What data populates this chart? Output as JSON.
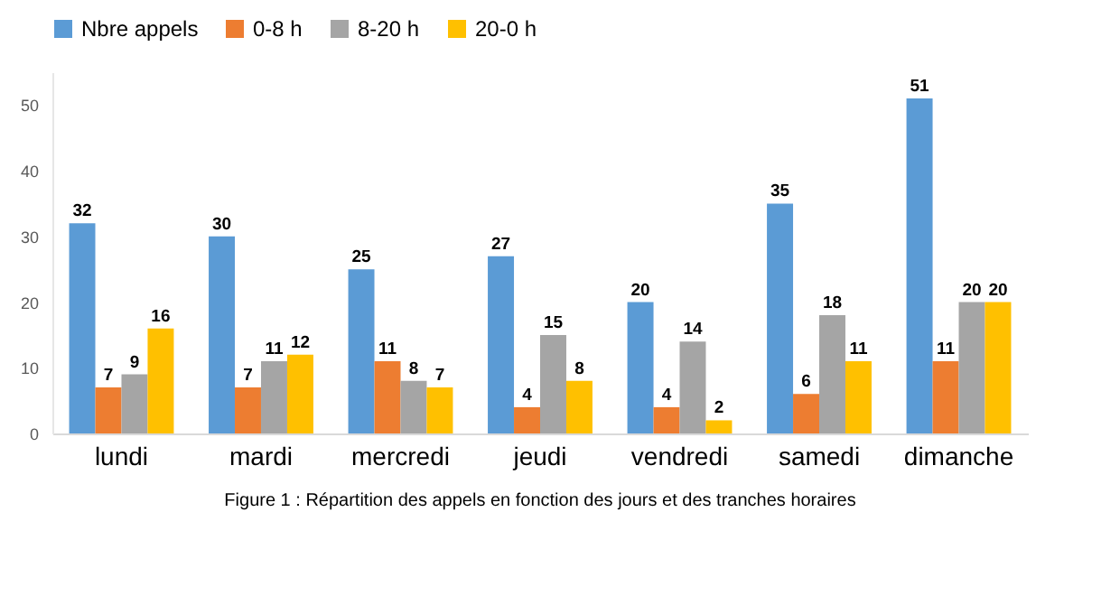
{
  "chart_data": {
    "type": "bar",
    "categories": [
      "lundi",
      "mardi",
      "mercredi",
      "jeudi",
      "vendredi",
      "samedi",
      "dimanche"
    ],
    "series": [
      {
        "name": "Nbre appels",
        "color": "#5b9bd5",
        "values": [
          32,
          30,
          25,
          27,
          20,
          35,
          51
        ]
      },
      {
        "name": "0-8 h",
        "color": "#ed7d31",
        "values": [
          7,
          7,
          11,
          4,
          4,
          6,
          11
        ]
      },
      {
        "name": "8-20 h",
        "color": "#a5a5a5",
        "values": [
          9,
          11,
          8,
          15,
          14,
          18,
          20
        ]
      },
      {
        "name": "20-0 h",
        "color": "#ffc000",
        "values": [
          16,
          12,
          7,
          8,
          2,
          11,
          20
        ]
      }
    ],
    "ylim": [
      0,
      55
    ],
    "yticks": [
      0,
      10,
      20,
      30,
      40,
      50
    ],
    "grid": false,
    "legend": "top",
    "data_labels": true,
    "annotations": [
      "Figure 1 : Répartition des appels en fonction des jours et des tranches horaires"
    ]
  }
}
